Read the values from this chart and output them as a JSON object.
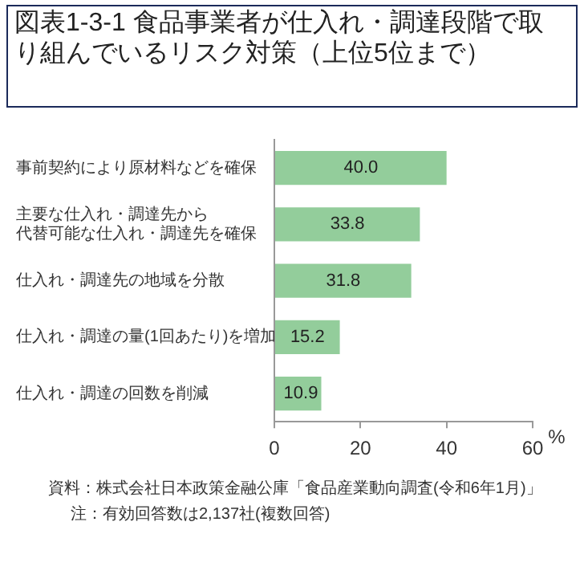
{
  "chart_data": {
    "type": "bar",
    "orientation": "horizontal",
    "title": "図表1-3-1 食品事業者が仕入れ・調達段階で取り組んでいるリスク対策（上位5位まで）",
    "categories": [
      "事前契約により原材料などを確保",
      "主要な仕入れ・調達先から代替可能な仕入れ・調達先を確保",
      "仕入れ・調達先の地域を分散",
      "仕入れ・調達の量(1回あたり)を増加",
      "仕入れ・調達の回数を削減"
    ],
    "values": [
      40.0,
      33.8,
      31.8,
      15.2,
      10.9
    ],
    "color": "#93cd9b",
    "value_labels": [
      "40.0",
      "33.8",
      "31.8",
      "15.2",
      "10.9"
    ],
    "xlim": [
      0,
      60
    ],
    "xticks": [
      0,
      20,
      40,
      60
    ],
    "xlabel": "%",
    "grid": false,
    "legend": false,
    "annotations": [
      "資料：株式会社日本政策金融公庫「食品産業動向調査(令和6年1月)」",
      "注：有効回答数は2,137社(複数回答)"
    ]
  }
}
